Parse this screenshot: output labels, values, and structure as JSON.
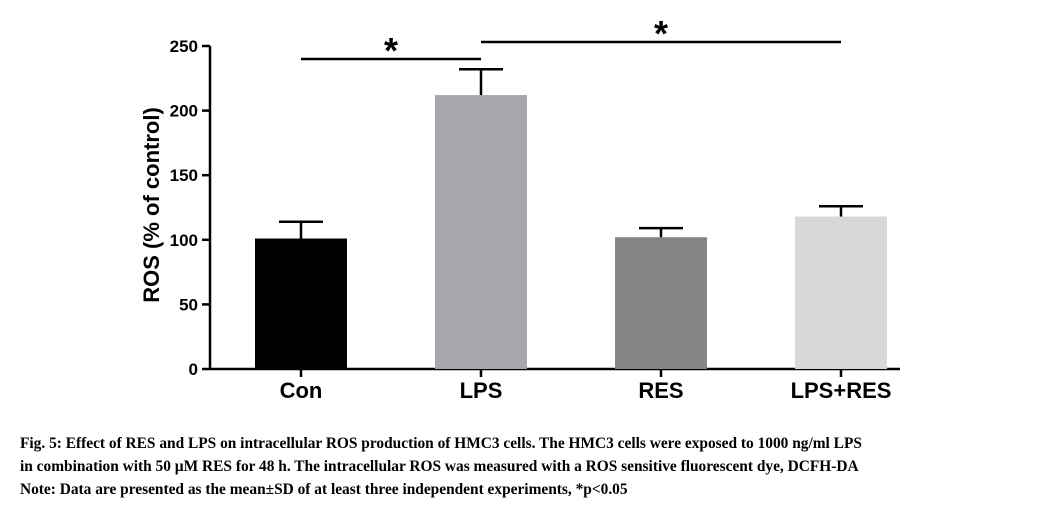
{
  "chart_data": {
    "type": "bar",
    "categories": [
      "Con",
      "LPS",
      "RES",
      "LPS+RES"
    ],
    "values": [
      101,
      212,
      102,
      118
    ],
    "errors": [
      13,
      20,
      7,
      8
    ],
    "bar_colors": [
      "#000000",
      "#a6a6ab",
      "#858585",
      "#d8d8d8"
    ],
    "title": "",
    "xlabel": "",
    "ylabel": "ROS (% of control)",
    "ylim": [
      0,
      250
    ],
    "yticks": [
      0,
      50,
      100,
      150,
      200,
      250
    ],
    "grid": false,
    "legend": "none",
    "significance": [
      {
        "from": "Con",
        "to": "LPS",
        "label": "*"
      },
      {
        "from": "LPS",
        "to": "LPS+RES",
        "label": "*"
      }
    ]
  },
  "caption": {
    "line1": "Fig. 5: Effect of RES and LPS on intracellular ROS production of HMC3 cells. The HMC3 cells were exposed to 1000 ng/ml LPS",
    "line2": "in combination with 50 µM RES for 48 h. The intracellular ROS was measured with a ROS sensitive fluorescent dye, DCFH-DA",
    "line3": "Note: Data are presented as the mean±SD of at least three independent experiments, *p<0.05"
  }
}
